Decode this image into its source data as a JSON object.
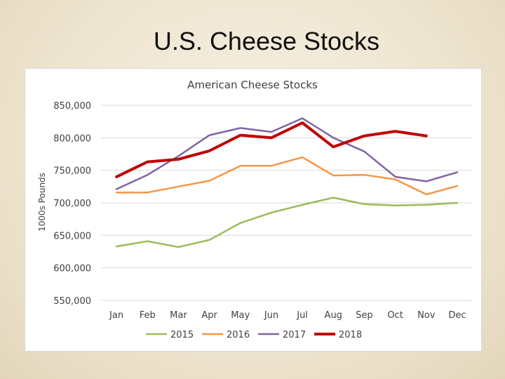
{
  "slide": {
    "title": "U.S. Cheese Stocks"
  },
  "chart_data": {
    "type": "line",
    "title": "American Cheese Stocks",
    "xlabel": "",
    "ylabel": "1000s Pounds",
    "ylim": [
      550000,
      850000
    ],
    "y_ticks": [
      550000,
      600000,
      650000,
      700000,
      750000,
      800000,
      850000
    ],
    "y_tick_labels": [
      "550,000",
      "600,000",
      "650,000",
      "700,000",
      "750,000",
      "800,000",
      "850,000"
    ],
    "categories": [
      "Jan",
      "Feb",
      "Mar",
      "Apr",
      "May",
      "Jun",
      "Jul",
      "Aug",
      "Sep",
      "Oct",
      "Nov",
      "Dec"
    ],
    "grid": true,
    "legend_position": "bottom",
    "series": [
      {
        "name": "2015",
        "color": "#9bbb59",
        "width": 2.5,
        "values": [
          633000,
          641000,
          632000,
          643000,
          669000,
          685000,
          697000,
          708000,
          698000,
          696000,
          697000,
          700000
        ]
      },
      {
        "name": "2016",
        "color": "#f79646",
        "width": 2.5,
        "values": [
          716000,
          716000,
          725000,
          734000,
          757000,
          757000,
          770000,
          742000,
          743000,
          736000,
          713000,
          726000
        ]
      },
      {
        "name": "2017",
        "color": "#8064a2",
        "width": 2.5,
        "values": [
          721000,
          743000,
          772000,
          804000,
          815000,
          809000,
          830000,
          800000,
          779000,
          740000,
          733000,
          747000
        ]
      },
      {
        "name": "2018",
        "color": "#c00000",
        "width": 4,
        "values": [
          740000,
          763000,
          767000,
          780000,
          804000,
          800000,
          823000,
          786000,
          803000,
          810000,
          803000,
          null
        ]
      }
    ]
  }
}
